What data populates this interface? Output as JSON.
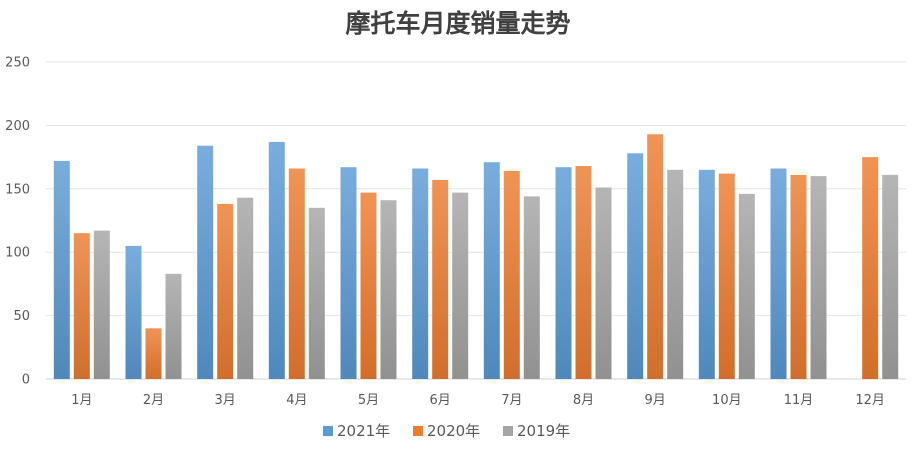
{
  "chart_data": {
    "type": "bar",
    "title": "摩托车月度销量走势",
    "categories": [
      "1月",
      "2月",
      "3月",
      "4月",
      "5月",
      "6月",
      "7月",
      "8月",
      "9月",
      "10月",
      "11月",
      "12月"
    ],
    "series": [
      {
        "name": "2021年",
        "color": "#5b9bd5",
        "values": [
          172,
          105,
          184,
          187,
          167,
          166,
          171,
          167,
          178,
          165,
          166,
          null
        ]
      },
      {
        "name": "2020年",
        "color": "#ed7d31",
        "values": [
          115,
          40,
          138,
          166,
          147,
          157,
          164,
          168,
          193,
          162,
          161,
          175
        ]
      },
      {
        "name": "2019年",
        "color": "#a5a5a5",
        "values": [
          117,
          83,
          143,
          135,
          141,
          147,
          144,
          151,
          165,
          146,
          160,
          161
        ]
      }
    ],
    "ylim": [
      0,
      250
    ],
    "yticks": [
      "0",
      "50",
      "100",
      "150",
      "200",
      "250"
    ],
    "grid": true,
    "legend_position": "bottom"
  }
}
